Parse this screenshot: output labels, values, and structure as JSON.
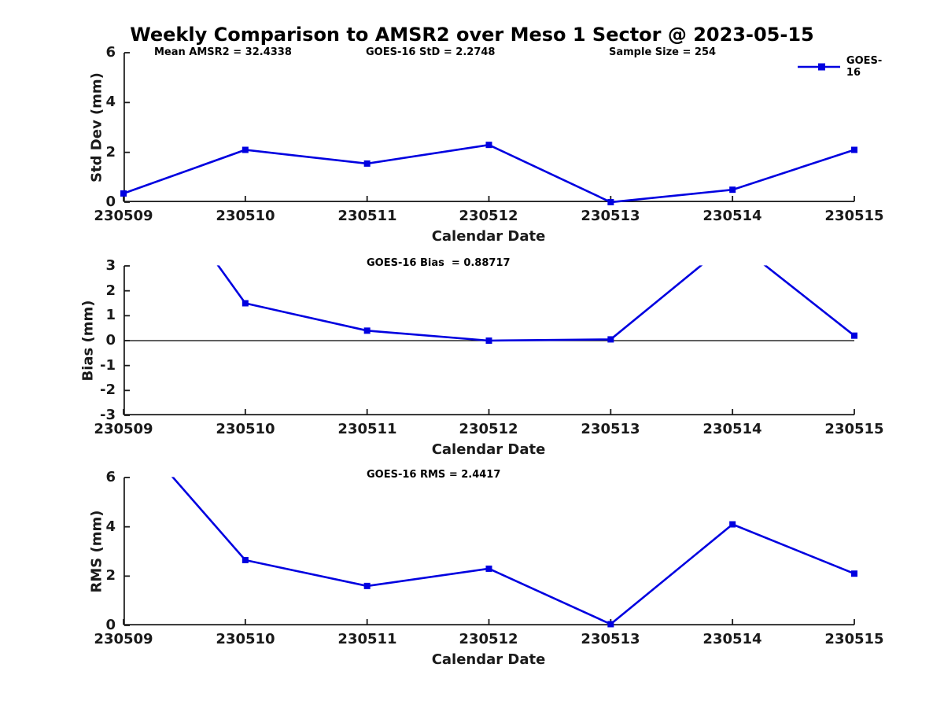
{
  "title": "Weekly Comparison to AMSR2 over Meso 1 Sector @ 2023-05-15",
  "legend": {
    "label": "GOES-16"
  },
  "line_color": "#0000e0",
  "axis_color": "#1a1a1a",
  "zero_line_color": "#000000",
  "chart_data": [
    {
      "type": "line",
      "name": "std-dev-subplot",
      "categories": [
        "230509",
        "230510",
        "230511",
        "230512",
        "230513",
        "230514",
        "230515"
      ],
      "series": [
        {
          "name": "GOES-16",
          "values": [
            0.35,
            2.1,
            1.55,
            2.3,
            0.0,
            0.5,
            2.1
          ]
        }
      ],
      "annotations": [
        "Mean AMSR2 = 32.4338",
        "GOES-16 StD = 2.2748",
        "Sample Size = 254"
      ],
      "xlabel": "Calendar Date",
      "ylabel": "Std Dev (mm)",
      "ylim": [
        0,
        6
      ],
      "yticks": [
        0,
        2,
        4,
        6
      ],
      "ytick_labels": [
        "6",
        "4",
        "2",
        "0"
      ],
      "grid": false,
      "legend_position": "top-right",
      "zero_line": false,
      "marker": "square"
    },
    {
      "type": "line",
      "name": "bias-subplot",
      "categories": [
        "230509",
        "230510",
        "230511",
        "230512",
        "230513",
        "230514",
        "230515"
      ],
      "series": [
        {
          "name": "GOES-16",
          "values": [
            8.3,
            1.5,
            0.4,
            0.0,
            0.05,
            4.05,
            0.2
          ]
        }
      ],
      "annotations": [
        "GOES-16 Bias  = 0.88717"
      ],
      "xlabel": "Calendar Date",
      "ylabel": "Bias (mm)",
      "ylim": [
        -3,
        3
      ],
      "yticks": [
        -3,
        -2,
        -1,
        0,
        1,
        2,
        3
      ],
      "ytick_labels": [
        "3",
        "2",
        "1",
        "0",
        "-1",
        "-2",
        "-3"
      ],
      "grid": false,
      "legend_position": "none",
      "zero_line": true,
      "marker": "square",
      "note": "values beyond ylim are clipped in the plot"
    },
    {
      "type": "line",
      "name": "rms-subplot",
      "categories": [
        "230509",
        "230510",
        "230511",
        "230512",
        "230513",
        "230514",
        "230515"
      ],
      "series": [
        {
          "name": "GOES-16",
          "values": [
            8.3,
            2.65,
            1.6,
            2.3,
            0.05,
            4.1,
            2.1
          ]
        }
      ],
      "annotations": [
        "GOES-16 RMS = 2.4417"
      ],
      "xlabel": "Calendar Date",
      "ylabel": "RMS (mm)",
      "ylim": [
        0,
        6
      ],
      "yticks": [
        0,
        2,
        4,
        6
      ],
      "ytick_labels": [
        "6",
        "4",
        "2",
        "0"
      ],
      "grid": false,
      "legend_position": "none",
      "zero_line": false,
      "marker": "square",
      "note": "values beyond ylim are clipped in the plot"
    }
  ]
}
